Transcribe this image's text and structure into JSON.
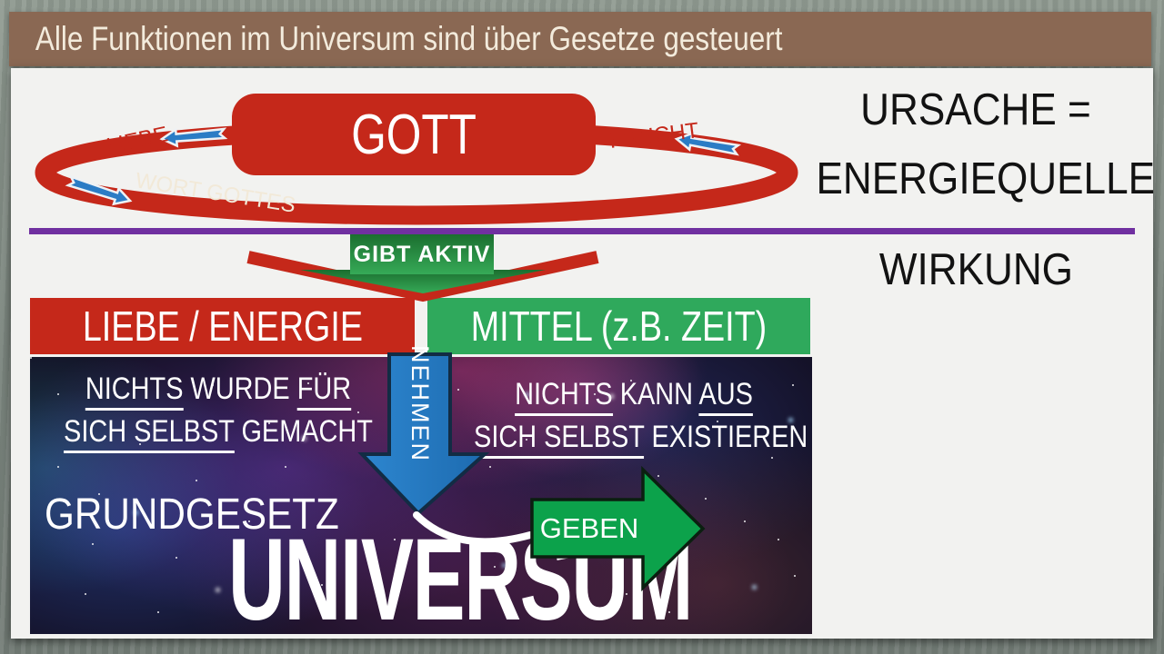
{
  "title_bar": {
    "title": "Alle Funktionen im Universum sind über Gesetze gesteuert"
  },
  "cycle": {
    "center": "GOTT",
    "liebe": "LIEBE",
    "frucht": "FRUCHT",
    "wort_gottes": "WORT GOTTES"
  },
  "cause": {
    "ursache": "URSACHE =",
    "energiequelle": "ENERGIEQUELLE",
    "wirkung": "WIRKUNG"
  },
  "gibt_aktiv": "GIBT AKTIV",
  "boxes": {
    "left": "LIEBE / ENERGIE",
    "right": "MITTEL (z.B. ZEIT)"
  },
  "universe": {
    "left_line1": [
      {
        "t": "NICHTS",
        "u": true
      },
      {
        "t": " WURDE ",
        "u": false
      },
      {
        "t": "FÜR",
        "u": true
      }
    ],
    "left_line2": [
      {
        "t": "SICH SELBST",
        "u": true
      },
      {
        "t": " GEMACHT",
        "u": false
      }
    ],
    "right_line1": [
      {
        "t": "NICHTS",
        "u": true
      },
      {
        "t": " KANN ",
        "u": false
      },
      {
        "t": "AUS",
        "u": true
      }
    ],
    "right_line2": [
      {
        "t": "SICH SELBST",
        "u": true
      },
      {
        "t": " EXISTIEREN",
        "u": false
      }
    ],
    "nehmen": "NEHMEN",
    "geben": "GEBEN",
    "grundgesetz": "GRUNDGESETZ",
    "universum": "UNIVERSUM"
  },
  "colors": {
    "red": "#c5281a",
    "box_green": "#2fa95c",
    "arrow_green": "#0ca24b",
    "blue": "#2b7cc5",
    "purple": "#7030a0",
    "title_brown": "#8a6853"
  }
}
